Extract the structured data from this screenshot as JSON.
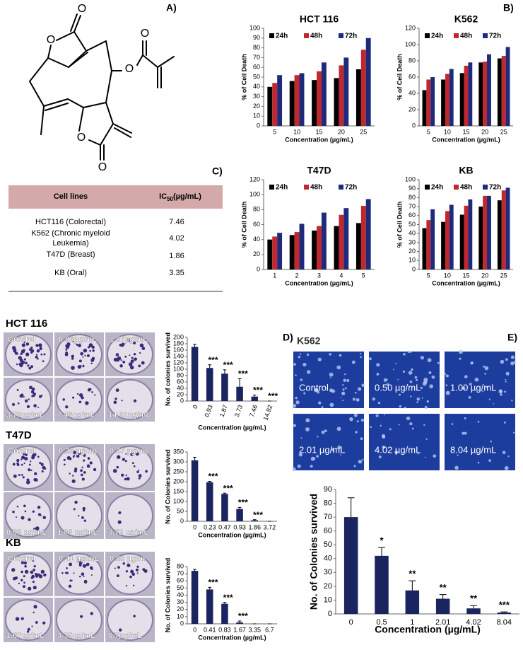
{
  "panels": {
    "a": "A)",
    "b": "B)",
    "c": "C)",
    "d": "D)",
    "e": "E)"
  },
  "molecule": {
    "atoms": [
      "O",
      "O",
      "O",
      "O",
      "O",
      "O"
    ]
  },
  "table": {
    "header": {
      "col1": "Cell lines",
      "ic": "IC",
      "sub": "50",
      "unit": "(µg/mL)"
    },
    "rows": [
      [
        "HCT116 (Colorectal)",
        7.46
      ],
      [
        "K562 (Chronic myeloid",
        "Leukemia)",
        4.02
      ],
      [
        "T47D (Breast)",
        1.86
      ],
      [
        "KB (Oral)",
        3.35
      ]
    ]
  },
  "colony_images": [
    {
      "title": "HCT 116",
      "labels": [
        "Control",
        "0.93µg/mL",
        "1.87µg/mL",
        "3.73µg/mL",
        "7.46µg/mL",
        "14.92µg/mL"
      ]
    },
    {
      "title": "T47D",
      "labels": [
        "Control",
        "0.23 µg/mL",
        "0.47 µg/mL",
        "0.93 µg/mL",
        "1.86 µg/mL",
        "3.72 µg/mL"
      ]
    },
    {
      "title": "KB",
      "labels": [
        "Control",
        "0.41 µg/mL",
        "0.83 µg/m",
        "1.67µg/mL",
        "3.35µg/mL",
        "6.7µg/mL"
      ]
    }
  ],
  "micrographs": {
    "title": "K562",
    "labels": [
      "Control",
      "0.50 µg/mL",
      "1.00 µg/mL",
      "2.01 µg/mL",
      "4.02 µg/mL",
      "8.04 µg/mL"
    ]
  },
  "chart_data": [
    {
      "type": "grouped_bar",
      "title": "HCT 116",
      "x_label": "Concentration (μg/mL)",
      "y_label": "% of Cell Death",
      "categories": [
        "5",
        "10",
        "15",
        "20",
        "25"
      ],
      "ylim": [
        0,
        100
      ],
      "yticks": [
        0,
        10,
        20,
        30,
        40,
        50,
        60,
        70,
        80,
        90,
        100
      ],
      "legend": "top-left",
      "series": [
        {
          "name": "24h",
          "color": "#000000",
          "values": [
            40,
            46,
            47,
            49,
            58
          ]
        },
        {
          "name": "48h",
          "color": "#c0282d",
          "values": [
            44,
            52,
            56,
            62,
            78
          ]
        },
        {
          "name": "72h",
          "color": "#1f2a7a",
          "values": [
            52,
            54,
            65,
            70,
            90
          ]
        }
      ]
    },
    {
      "type": "grouped_bar",
      "title": "K562",
      "x_label": "Concentration (μg/mL)",
      "y_label": "% of Cell Death",
      "categories": [
        "5",
        "10",
        "15",
        "20",
        "25"
      ],
      "ylim": [
        0,
        120
      ],
      "yticks": [
        0,
        20,
        40,
        60,
        80,
        100,
        120
      ],
      "legend": "top-left",
      "series": [
        {
          "name": "24h",
          "color": "#000000",
          "values": [
            44,
            57,
            65,
            78,
            83
          ]
        },
        {
          "name": "48h",
          "color": "#c0282d",
          "values": [
            57,
            64,
            74,
            79,
            86
          ]
        },
        {
          "name": "72h",
          "color": "#1f2a7a",
          "values": [
            60,
            70,
            78,
            88,
            97
          ]
        }
      ]
    },
    {
      "type": "grouped_bar",
      "title": "T47D",
      "x_label": "Concentration (μg/mL)",
      "y_label": "% of Cell Death",
      "categories": [
        "1",
        "2",
        "3",
        "4",
        "5"
      ],
      "ylim": [
        0,
        120
      ],
      "yticks": [
        0,
        20,
        40,
        60,
        80,
        100,
        120
      ],
      "legend": "top-left",
      "series": [
        {
          "name": "24h",
          "color": "#000000",
          "values": [
            40,
            46,
            52,
            58,
            62
          ]
        },
        {
          "name": "48h",
          "color": "#c0282d",
          "values": [
            44,
            50,
            58,
            73,
            85
          ]
        },
        {
          "name": "72h",
          "color": "#1f2a7a",
          "values": [
            49,
            61,
            76,
            82,
            94
          ]
        }
      ]
    },
    {
      "type": "grouped_bar",
      "title": "KB",
      "x_label": "Concentration (μg/mL)",
      "y_label": "% of Cell Death",
      "categories": [
        "5",
        "10",
        "15",
        "20",
        "25"
      ],
      "ylim": [
        0,
        100
      ],
      "yticks": [
        0,
        10,
        20,
        30,
        40,
        50,
        60,
        70,
        80,
        90,
        100
      ],
      "legend": "top-left",
      "series": [
        {
          "name": "24h",
          "color": "#000000",
          "values": [
            46,
            53,
            61,
            70,
            77
          ]
        },
        {
          "name": "48h",
          "color": "#c0282d",
          "values": [
            55,
            65,
            71,
            82,
            88
          ]
        },
        {
          "name": "72h",
          "color": "#1f2a7a",
          "values": [
            67,
            72,
            78,
            82,
            91
          ]
        }
      ]
    },
    {
      "type": "bar",
      "x_label": "Concentration  (µg/mL)",
      "y_label": "No. of colonies survived",
      "color": "#1a2560",
      "categories": [
        "0",
        "0.93",
        "1.87",
        "3.73",
        "7.46",
        "14.92"
      ],
      "values": [
        170,
        104,
        86,
        45,
        14,
        0
      ],
      "errors": [
        8,
        10,
        12,
        25,
        5,
        0
      ],
      "significance": [
        null,
        "***",
        "***",
        "***",
        "***",
        "***"
      ],
      "ylim": [
        0,
        200
      ],
      "yticks": [
        0,
        20,
        40,
        60,
        80,
        100,
        120,
        140,
        160,
        180,
        200
      ]
    },
    {
      "type": "bar",
      "x_label": "Concentration (µg/mL)",
      "y_label": "No. of Colonies survived",
      "color": "#1a2560",
      "categories": [
        "0",
        "0.23",
        "0.47",
        "0.93",
        "1.86",
        "3.72"
      ],
      "values": [
        308,
        197,
        138,
        62,
        5,
        0
      ],
      "errors": [
        15,
        5,
        4,
        8,
        3,
        0
      ],
      "significance": [
        null,
        "***",
        "***",
        "***",
        "***",
        null
      ],
      "ylim": [
        0,
        350
      ],
      "yticks": [
        0,
        50,
        100,
        150,
        200,
        250,
        300,
        350
      ]
    },
    {
      "type": "bar",
      "x_label": "Concentration  (µg/mL)",
      "y_label": "No. of Colonies survived",
      "color": "#1a2560",
      "categories": [
        "0",
        "0.41",
        "0.83",
        "1.67",
        "3.35",
        "6.7"
      ],
      "values": [
        74,
        48,
        28,
        2,
        0,
        0
      ],
      "errors": [
        2,
        3,
        2,
        2,
        0,
        0
      ],
      "significance": [
        null,
        "***",
        "***",
        "***",
        null,
        null
      ],
      "ylim": [
        0,
        80
      ],
      "yticks": [
        0,
        10,
        20,
        30,
        40,
        50,
        60,
        70,
        80
      ]
    },
    {
      "type": "bar",
      "x_label": "Concentration (µg/mL)",
      "y_label": "No. of Colonies survived",
      "color": "#1a2560",
      "categories": [
        "0",
        "0.5",
        "1",
        "2.01",
        "4.02",
        "8.04"
      ],
      "values": [
        70,
        42,
        17,
        11,
        4,
        1
      ],
      "errors": [
        14,
        6,
        7,
        3,
        2,
        0.5
      ],
      "significance": [
        null,
        "*",
        "**",
        "**",
        "**",
        "***"
      ],
      "ylim": [
        0,
        90
      ],
      "yticks": [
        0,
        10,
        20,
        30,
        40,
        50,
        60,
        70,
        80,
        90
      ]
    }
  ]
}
